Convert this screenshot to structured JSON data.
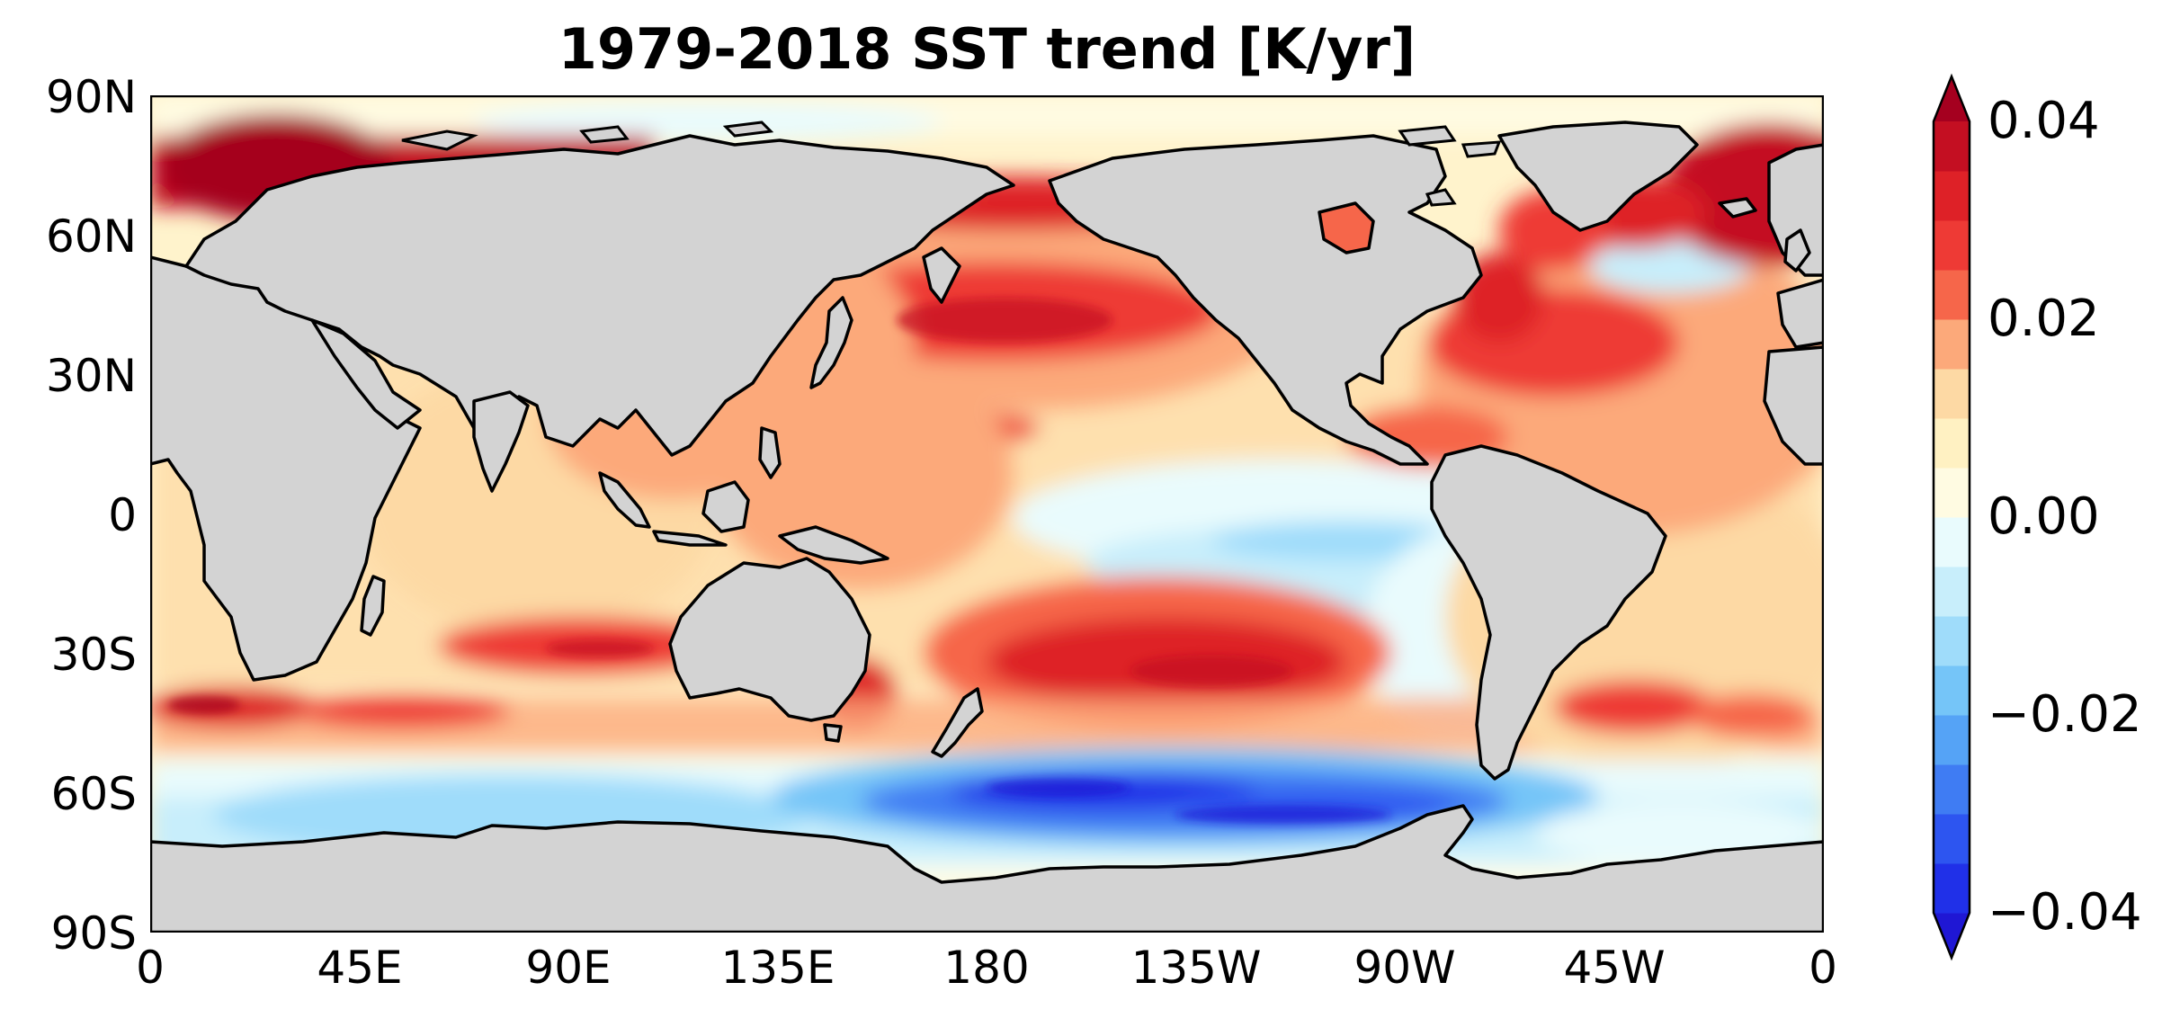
{
  "title": "1979-2018 SST trend [K/yr]",
  "map": {
    "projection": "equirectangular",
    "longitude_range": [
      0,
      360
    ],
    "latitude_range": [
      -90,
      90
    ],
    "land_color": "#d3d3d3",
    "coastline_color": "#000000",
    "y_tick_labels": [
      "90N",
      "60N",
      "30N",
      "0",
      "30S",
      "60S",
      "90S"
    ],
    "x_tick_labels": [
      "0",
      "45E",
      "90E",
      "135E",
      "180",
      "135W",
      "90W",
      "45W",
      "0"
    ]
  },
  "colorbar": {
    "range": [
      -0.04,
      0.04
    ],
    "extend": "both",
    "tick_labels": [
      "0.04",
      "0.02",
      "0.00",
      "−0.02",
      "−0.04"
    ],
    "colors_bottom_to_top": [
      "#1f17d4",
      "#2030e8",
      "#2d55f0",
      "#3f7cf3",
      "#55a3f6",
      "#75c5f8",
      "#9fdcfa",
      "#c8eefb",
      "#e9fbfd",
      "#fffbe2",
      "#fff1c2",
      "#fdd9a4",
      "#fca97a",
      "#f6664a",
      "#ee3a35",
      "#de2127",
      "#c40f22",
      "#a5001f"
    ]
  }
}
